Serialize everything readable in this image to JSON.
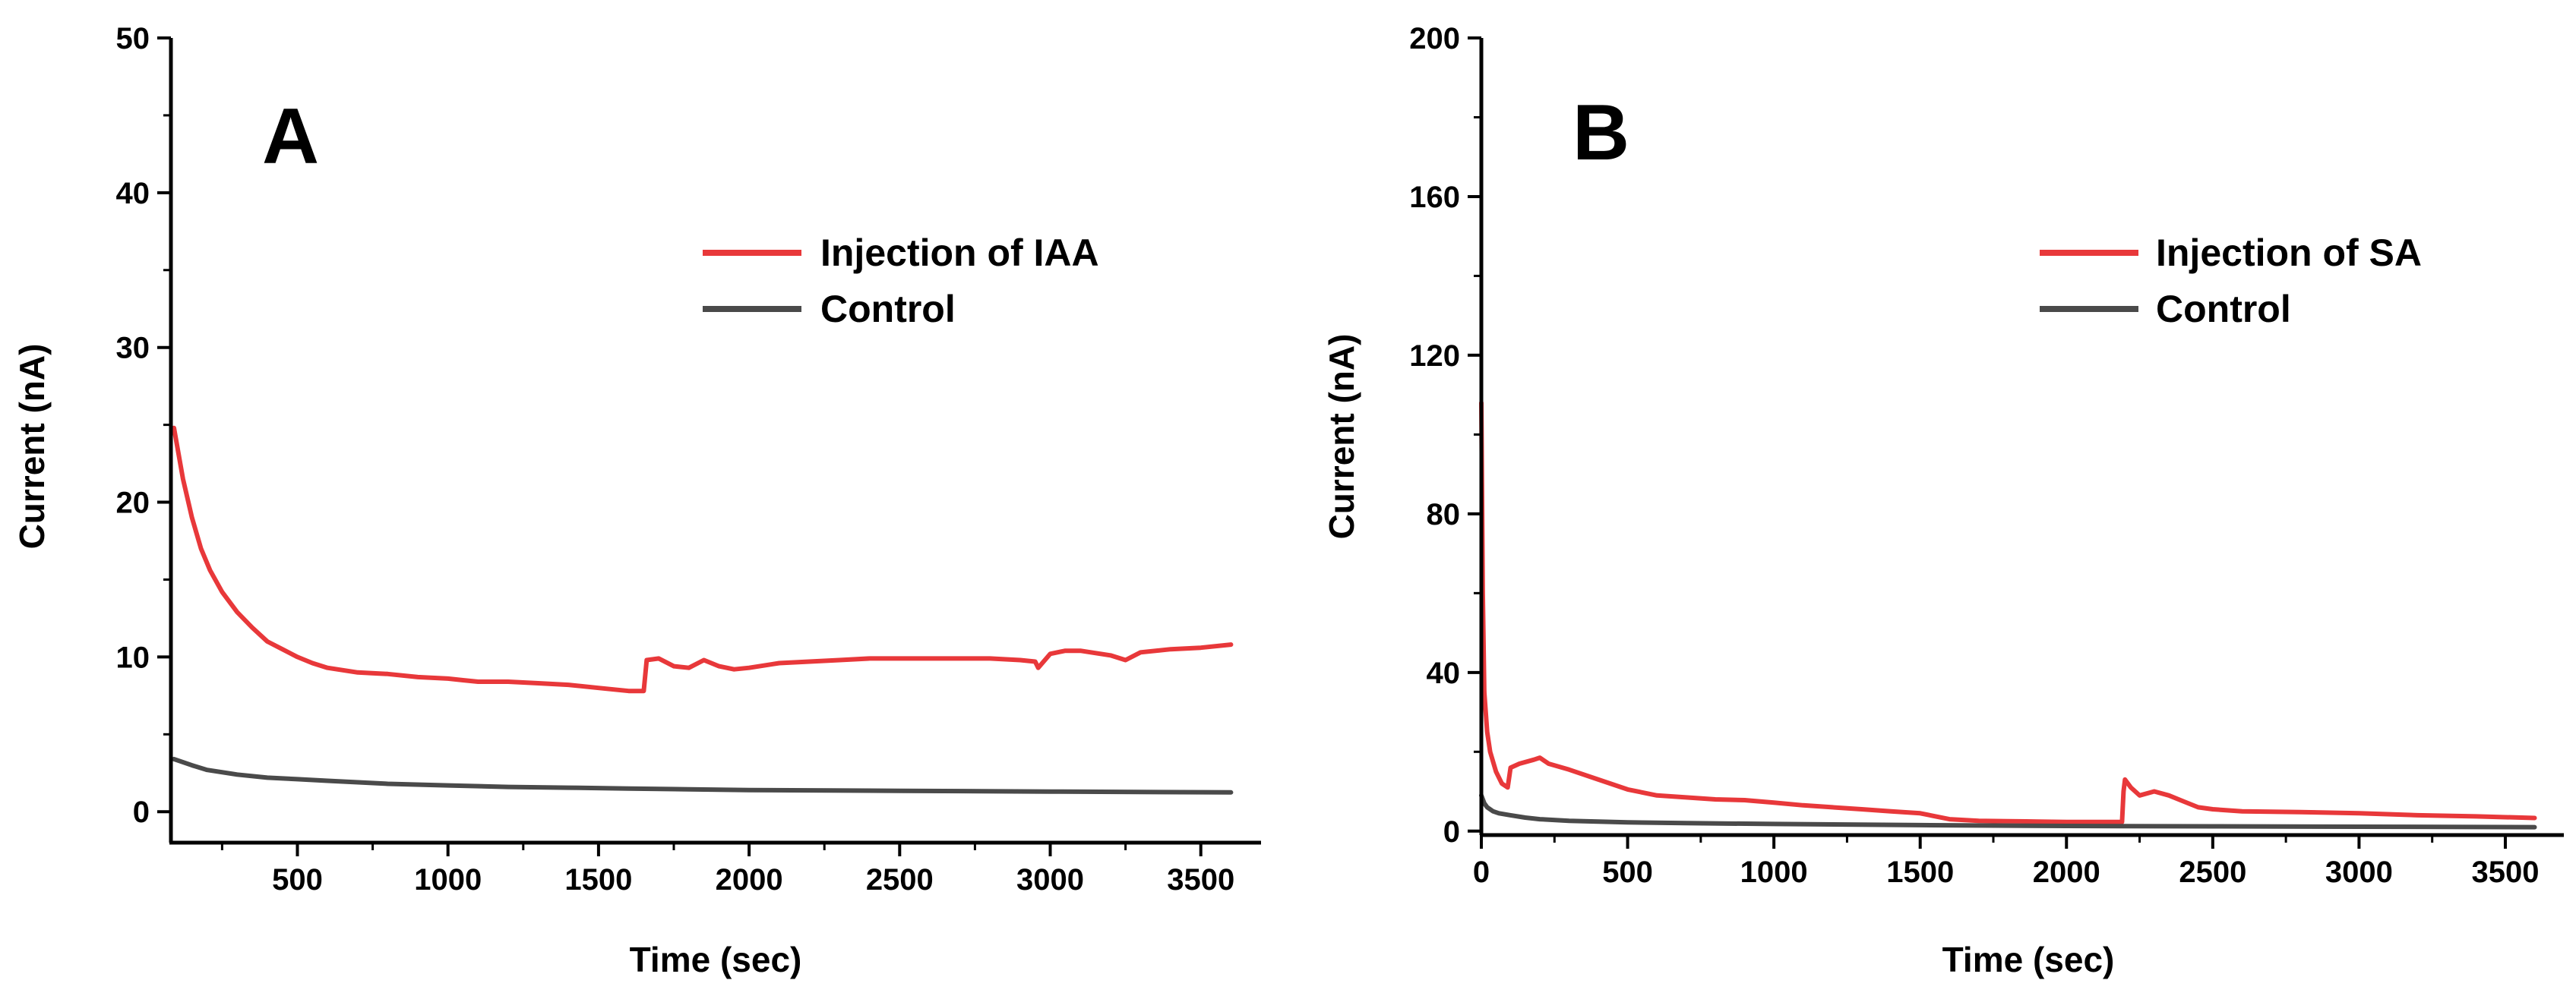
{
  "chart_data": [
    {
      "type": "line",
      "panel_label": "A",
      "xlabel": "Time (sec)",
      "ylabel": "Current (nA)",
      "xlim": [
        80,
        3700
      ],
      "ylim": [
        -2,
        50
      ],
      "xticks": [
        500,
        1000,
        1500,
        2000,
        2500,
        3000,
        3500
      ],
      "yticks": [
        0,
        10,
        20,
        30,
        40,
        50
      ],
      "grid": false,
      "legend_position": "top-right",
      "series": [
        {
          "name": "Injection of IAA",
          "color": "#e8383a",
          "x": [
            90,
            120,
            150,
            180,
            210,
            250,
            300,
            350,
            400,
            450,
            500,
            550,
            600,
            700,
            800,
            900,
            1000,
            1050,
            1100,
            1200,
            1300,
            1400,
            1500,
            1600,
            1650,
            1660,
            1700,
            1750,
            1800,
            1850,
            1900,
            1950,
            2000,
            2100,
            2200,
            2300,
            2400,
            2500,
            2600,
            2700,
            2800,
            2900,
            2950,
            2960,
            3000,
            3050,
            3100,
            3200,
            3250,
            3300,
            3400,
            3500,
            3600
          ],
          "y": [
            24.8,
            21.5,
            19.0,
            17.0,
            15.6,
            14.2,
            12.9,
            11.9,
            11.0,
            10.5,
            10.0,
            9.6,
            9.3,
            9.0,
            8.9,
            8.7,
            8.6,
            8.5,
            8.4,
            8.4,
            8.3,
            8.2,
            8.0,
            7.8,
            7.8,
            9.8,
            9.9,
            9.4,
            9.3,
            9.8,
            9.4,
            9.2,
            9.3,
            9.6,
            9.7,
            9.8,
            9.9,
            9.9,
            9.9,
            9.9,
            9.9,
            9.8,
            9.7,
            9.3,
            10.2,
            10.4,
            10.4,
            10.1,
            9.8,
            10.3,
            10.5,
            10.6,
            10.8
          ]
        },
        {
          "name": "Control",
          "color": "#4a4a4a",
          "x": [
            90,
            150,
            200,
            300,
            400,
            500,
            600,
            800,
            1000,
            1200,
            1400,
            1600,
            1800,
            2000,
            2500,
            3000,
            3600
          ],
          "y": [
            3.4,
            3.0,
            2.7,
            2.4,
            2.2,
            2.1,
            2.0,
            1.8,
            1.7,
            1.6,
            1.55,
            1.5,
            1.45,
            1.4,
            1.35,
            1.3,
            1.25
          ]
        }
      ]
    },
    {
      "type": "line",
      "panel_label": "B",
      "xlabel": "Time (sec)",
      "ylabel": "Current (nA)",
      "xlim": [
        0,
        3700
      ],
      "ylim": [
        -1,
        200
      ],
      "xticks": [
        0,
        500,
        1000,
        1500,
        2000,
        2500,
        3000,
        3500
      ],
      "yticks": [
        0,
        40,
        80,
        120,
        160,
        200
      ],
      "grid": false,
      "legend_position": "top-right",
      "series": [
        {
          "name": "Injection of SA",
          "color": "#e8383a",
          "x": [
            0,
            5,
            10,
            20,
            30,
            50,
            70,
            90,
            100,
            130,
            180,
            200,
            230,
            300,
            400,
            500,
            600,
            700,
            800,
            900,
            1000,
            1100,
            1200,
            1300,
            1400,
            1500,
            1600,
            1700,
            1800,
            1900,
            2000,
            2100,
            2190,
            2195,
            2200,
            2220,
            2250,
            2300,
            2350,
            2400,
            2450,
            2500,
            2600,
            2800,
            3000,
            3200,
            3400,
            3600
          ],
          "y": [
            108,
            60,
            35,
            25,
            20,
            15,
            12,
            11,
            16,
            17,
            18,
            18.5,
            17,
            15.5,
            13.0,
            10.5,
            9.0,
            8.5,
            8.0,
            7.8,
            7.2,
            6.5,
            6.0,
            5.5,
            5.0,
            4.5,
            3.0,
            2.6,
            2.5,
            2.4,
            2.3,
            2.3,
            2.3,
            10,
            13,
            11,
            9,
            10,
            9,
            7.5,
            6.0,
            5.5,
            5.0,
            4.8,
            4.5,
            4.0,
            3.7,
            3.3
          ]
        },
        {
          "name": "Control",
          "color": "#4a4a4a",
          "x": [
            0,
            10,
            20,
            40,
            60,
            100,
            150,
            200,
            300,
            400,
            500,
            700,
            1000,
            1500,
            2000,
            2500,
            3000,
            3600
          ],
          "y": [
            9,
            7,
            6,
            5,
            4.5,
            4.0,
            3.4,
            3.0,
            2.6,
            2.4,
            2.2,
            2.0,
            1.8,
            1.5,
            1.3,
            1.2,
            1.1,
            1.0
          ]
        }
      ]
    }
  ]
}
